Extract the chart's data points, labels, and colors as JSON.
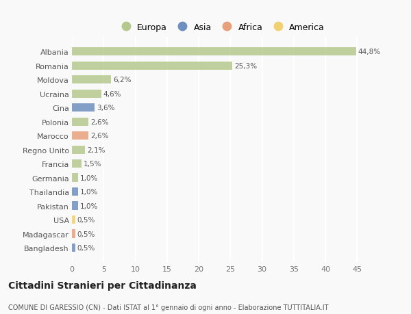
{
  "countries": [
    "Albania",
    "Romania",
    "Moldova",
    "Ucraina",
    "Cina",
    "Polonia",
    "Marocco",
    "Regno Unito",
    "Francia",
    "Germania",
    "Thailandia",
    "Pakistan",
    "USA",
    "Madagascar",
    "Bangladesh"
  ],
  "values": [
    44.8,
    25.3,
    6.2,
    4.6,
    3.6,
    2.6,
    2.6,
    2.1,
    1.5,
    1.0,
    1.0,
    1.0,
    0.5,
    0.5,
    0.5
  ],
  "labels": [
    "44,8%",
    "25,3%",
    "6,2%",
    "4,6%",
    "3,6%",
    "2,6%",
    "2,6%",
    "2,1%",
    "1,5%",
    "1,0%",
    "1,0%",
    "1,0%",
    "0,5%",
    "0,5%",
    "0,5%"
  ],
  "colors": [
    "#b5c98e",
    "#b5c98e",
    "#b5c98e",
    "#b5c98e",
    "#6e8fbf",
    "#b5c98e",
    "#e8a07a",
    "#b5c98e",
    "#b5c98e",
    "#b5c98e",
    "#6e8fbf",
    "#6e8fbf",
    "#f0d070",
    "#e8a07a",
    "#6e8fbf"
  ],
  "legend_labels": [
    "Europa",
    "Asia",
    "Africa",
    "America"
  ],
  "legend_colors": [
    "#b5c98e",
    "#6e8fbf",
    "#e8a07a",
    "#f0d070"
  ],
  "xlim": [
    0,
    47
  ],
  "xticks": [
    0,
    5,
    10,
    15,
    20,
    25,
    30,
    35,
    40,
    45
  ],
  "title": "Cittadini Stranieri per Cittadinanza",
  "subtitle": "COMUNE DI GARESSIO (CN) - Dati ISTAT al 1° gennaio di ogni anno - Elaborazione TUTTITALIA.IT",
  "bg_color": "#f9f9f9",
  "grid_color": "#ffffff",
  "bar_height": 0.6
}
